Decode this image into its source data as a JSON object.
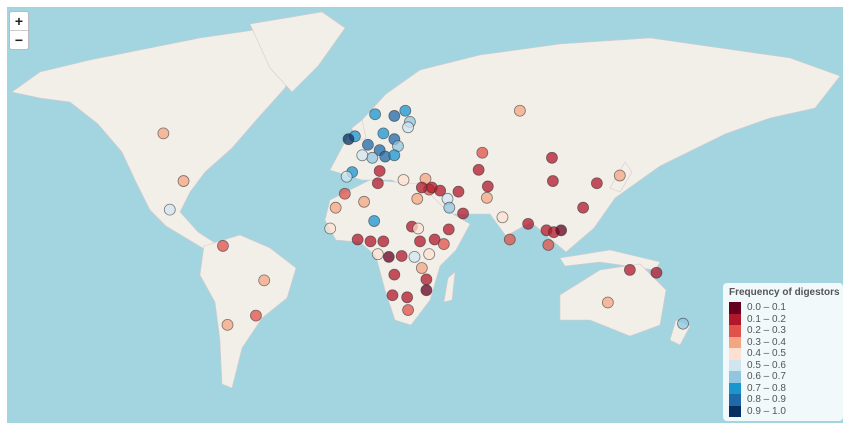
{
  "map": {
    "controls": {
      "zoom_in": "+",
      "zoom_out": "−"
    },
    "legend": {
      "title": "Frequency of digestors",
      "bins": [
        {
          "min": 0.0,
          "max": 0.1,
          "label": "0.0 – 0.1",
          "color": "#67001f"
        },
        {
          "min": 0.1,
          "max": 0.2,
          "label": "0.1 – 0.2",
          "color": "#b2182b"
        },
        {
          "min": 0.2,
          "max": 0.3,
          "label": "0.2 – 0.3",
          "color": "#e0524a"
        },
        {
          "min": 0.3,
          "max": 0.4,
          "label": "0.3 – 0.4",
          "color": "#f4a582"
        },
        {
          "min": 0.4,
          "max": 0.5,
          "label": "0.4 – 0.5",
          "color": "#fde0d2"
        },
        {
          "min": 0.5,
          "max": 0.6,
          "label": "0.5 – 0.6",
          "color": "#d1e5f0"
        },
        {
          "min": 0.6,
          "max": 0.7,
          "label": "0.6 – 0.7",
          "color": "#92c5de"
        },
        {
          "min": 0.7,
          "max": 0.8,
          "label": "0.7 – 0.8",
          "color": "#1a96cf"
        },
        {
          "min": 0.8,
          "max": 0.9,
          "label": "0.8 – 0.9",
          "color": "#1f69a8"
        },
        {
          "min": 0.9,
          "max": 1.0,
          "label": "0.9 – 1.0",
          "color": "#053061"
        }
      ]
    },
    "points": [
      {
        "lon": -110,
        "lat": 52,
        "frequency": 0.35
      },
      {
        "lon": -99,
        "lat": 33,
        "frequency": 0.35
      },
      {
        "lon": -106.5,
        "lat": 19,
        "frequency": 0.55
      },
      {
        "lon": -77.5,
        "lat": -0.5,
        "frequency": 0.25
      },
      {
        "lon": -55,
        "lat": -19,
        "frequency": 0.3
      },
      {
        "lon": -59.5,
        "lat": -36,
        "frequency": 0.25
      },
      {
        "lon": -75,
        "lat": -40,
        "frequency": 0.35
      },
      {
        "lon": 5.5,
        "lat": 58,
        "frequency": 0.75
      },
      {
        "lon": 22,
        "lat": 59,
        "frequency": 0.75
      },
      {
        "lon": 16,
        "lat": 57.5,
        "frequency": 0.85
      },
      {
        "lon": 24.5,
        "lat": 55.7,
        "frequency": 0.65
      },
      {
        "lon": 23.5,
        "lat": 54,
        "frequency": 0.55
      },
      {
        "lon": -5.5,
        "lat": 51,
        "frequency": 0.75
      },
      {
        "lon": -9,
        "lat": 50,
        "frequency": 0.95
      },
      {
        "lon": 1.6,
        "lat": 48,
        "frequency": 0.8
      },
      {
        "lon": 10,
        "lat": 52,
        "frequency": 0.75
      },
      {
        "lon": 16,
        "lat": 50,
        "frequency": 0.85
      },
      {
        "lon": 8,
        "lat": 46,
        "frequency": 0.85
      },
      {
        "lon": 4,
        "lat": 43,
        "frequency": 0.6
      },
      {
        "lon": 11,
        "lat": 43.5,
        "frequency": 0.8
      },
      {
        "lon": 18,
        "lat": 47.5,
        "frequency": 0.6
      },
      {
        "lon": 16,
        "lat": 44,
        "frequency": 0.75
      },
      {
        "lon": -1.5,
        "lat": 44,
        "frequency": 0.55
      },
      {
        "lon": -7,
        "lat": 37,
        "frequency": 0.7
      },
      {
        "lon": -10,
        "lat": 35,
        "frequency": 0.5
      },
      {
        "lon": 8,
        "lat": 37.5,
        "frequency": 0.15
      },
      {
        "lon": 21,
        "lat": 33.5,
        "frequency": 0.45
      },
      {
        "lon": 7,
        "lat": 32,
        "frequency": 0.1
      },
      {
        "lon": -11,
        "lat": 27,
        "frequency": 0.25
      },
      {
        "lon": -0.5,
        "lat": 23,
        "frequency": 0.35
      },
      {
        "lon": -16,
        "lat": 20,
        "frequency": 0.35
      },
      {
        "lon": -19,
        "lat": 9,
        "frequency": 0.4
      },
      {
        "lon": 5,
        "lat": 13,
        "frequency": 0.75
      },
      {
        "lon": -4,
        "lat": 3,
        "frequency": 0.1
      },
      {
        "lon": 3,
        "lat": 2,
        "frequency": 0.15
      },
      {
        "lon": 10,
        "lat": 2,
        "frequency": 0.1
      },
      {
        "lon": 25.6,
        "lat": 10,
        "frequency": 0.1
      },
      {
        "lon": 29,
        "lat": 9,
        "frequency": 0.45
      },
      {
        "lon": 7,
        "lat": -5,
        "frequency": 0.45
      },
      {
        "lon": 13,
        "lat": -6.5,
        "frequency": 0.05
      },
      {
        "lon": 20,
        "lat": -6,
        "frequency": 0.1
      },
      {
        "lon": 27,
        "lat": -6.5,
        "frequency": 0.55
      },
      {
        "lon": 35,
        "lat": -5,
        "frequency": 0.45
      },
      {
        "lon": 16,
        "lat": -16,
        "frequency": 0.15
      },
      {
        "lon": 31,
        "lat": -12.5,
        "frequency": 0.35
      },
      {
        "lon": 33.5,
        "lat": -18.5,
        "frequency": 0.1
      },
      {
        "lon": 33.5,
        "lat": -24,
        "frequency": 0.05
      },
      {
        "lon": 23,
        "lat": -27.5,
        "frequency": 0.15
      },
      {
        "lon": 15,
        "lat": -26.5,
        "frequency": 0.1
      },
      {
        "lon": 23.5,
        "lat": -33.5,
        "frequency": 0.25
      },
      {
        "lon": 38,
        "lat": 3,
        "frequency": 0.15
      },
      {
        "lon": 43,
        "lat": 0.5,
        "frequency": 0.25
      },
      {
        "lon": 45.7,
        "lat": 8.5,
        "frequency": 0.15
      },
      {
        "lon": 30,
        "lat": 2,
        "frequency": 0.1
      },
      {
        "lon": 28.5,
        "lat": 24.5,
        "frequency": 0.35
      },
      {
        "lon": 33,
        "lat": 34,
        "frequency": 0.35
      },
      {
        "lon": 35,
        "lat": 29,
        "frequency": 0.2
      },
      {
        "lon": 31,
        "lat": 30,
        "frequency": 0.15
      },
      {
        "lon": 36.5,
        "lat": 30,
        "frequency": 0.15
      },
      {
        "lon": 41,
        "lat": 28.5,
        "frequency": 0.1
      },
      {
        "lon": 45,
        "lat": 24.5,
        "frequency": 0.55
      },
      {
        "lon": 46,
        "lat": 20,
        "frequency": 0.6
      },
      {
        "lon": 53.5,
        "lat": 17,
        "frequency": 0.15
      },
      {
        "lon": 51,
        "lat": 28,
        "frequency": 0.15
      },
      {
        "lon": 64,
        "lat": 45,
        "frequency": 0.25
      },
      {
        "lon": 62,
        "lat": 38,
        "frequency": 0.15
      },
      {
        "lon": 67,
        "lat": 30.5,
        "frequency": 0.15
      },
      {
        "lon": 66.5,
        "lat": 25,
        "frequency": 0.35
      },
      {
        "lon": 75,
        "lat": 15,
        "frequency": 0.45
      },
      {
        "lon": 79,
        "lat": 3,
        "frequency": 0.25
      },
      {
        "lon": 84.5,
        "lat": 59,
        "frequency": 0.35
      },
      {
        "lon": 102,
        "lat": 43,
        "frequency": 0.15
      },
      {
        "lon": 102.5,
        "lat": 33,
        "frequency": 0.15
      },
      {
        "lon": 89,
        "lat": 11.5,
        "frequency": 0.1
      },
      {
        "lon": 99,
        "lat": 8,
        "frequency": 0.15
      },
      {
        "lon": 100,
        "lat": 0,
        "frequency": 0.25
      },
      {
        "lon": 103,
        "lat": 7,
        "frequency": 0.1
      },
      {
        "lon": 107,
        "lat": 8,
        "frequency": 0.05
      },
      {
        "lon": 119,
        "lat": 20,
        "frequency": 0.15
      },
      {
        "lon": 126.5,
        "lat": 32,
        "frequency": 0.1
      },
      {
        "lon": 139,
        "lat": 35.5,
        "frequency": 0.3
      },
      {
        "lon": 144.5,
        "lat": -13.5,
        "frequency": 0.1
      },
      {
        "lon": 159,
        "lat": -15,
        "frequency": 0.1
      },
      {
        "lon": 132.5,
        "lat": -30,
        "frequency": 0.35
      },
      {
        "lon": 173.5,
        "lat": -39.5,
        "frequency": 0.6
      }
    ]
  }
}
